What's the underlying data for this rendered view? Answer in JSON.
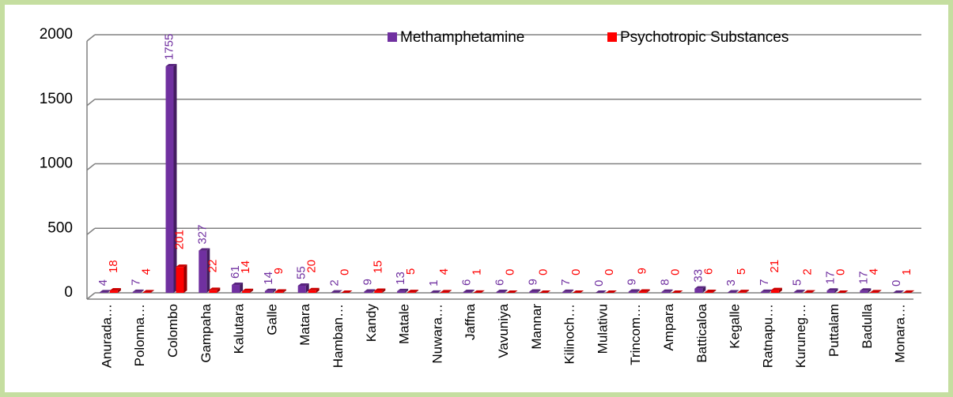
{
  "chart_data": {
    "type": "bar",
    "categories": [
      "Anurada…",
      "Polonna…",
      "Colombo",
      "Gampaha",
      "Kalutara",
      "Galle",
      "Matara",
      "Hamban…",
      "Kandy",
      "Matale",
      "Nuwara…",
      "Jaffna",
      "Vavuniya",
      "Mannar",
      "Kilinoch…",
      "Mulativu",
      "Trincom…",
      "Ampara",
      "Batticaloa",
      "Kegalle",
      "Ratnapu…",
      "Kuruneg…",
      "Puttalam",
      "Badulla",
      "Monara…"
    ],
    "series": [
      {
        "name": "Methamphetamine",
        "color": "#7030a0",
        "values": [
          4,
          7,
          1755,
          327,
          61,
          14,
          55,
          2,
          9,
          13,
          1,
          6,
          6,
          9,
          7,
          0,
          9,
          8,
          33,
          3,
          7,
          5,
          17,
          17,
          0
        ]
      },
      {
        "name": "Psychotropic Substances",
        "color": "#ff0000",
        "values": [
          18,
          4,
          201,
          22,
          14,
          9,
          20,
          0,
          15,
          5,
          4,
          1,
          0,
          0,
          0,
          0,
          9,
          0,
          6,
          5,
          21,
          2,
          0,
          4,
          1
        ]
      }
    ],
    "ylim": [
      0,
      2000
    ],
    "yticks": [
      0,
      500,
      1000,
      1500,
      2000
    ],
    "grid": true
  }
}
